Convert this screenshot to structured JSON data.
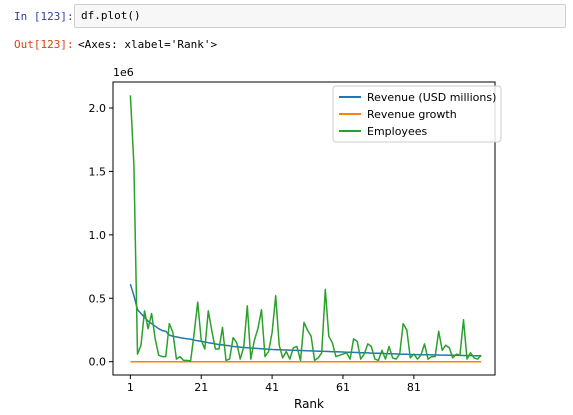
{
  "cell": {
    "in_prompt": "In [123]:",
    "code": "df.plot()",
    "out_prompt": "Out[123]:",
    "output_text": "<Axes: xlabel='Rank'>"
  },
  "chart_data": {
    "type": "line",
    "xlabel": "Rank",
    "ylabel": "",
    "offset_text": "1e6",
    "xlim": [
      -3.9,
      103.9
    ],
    "ylim": [
      -105000,
      2205000
    ],
    "xticks": [
      1,
      21,
      41,
      61,
      81
    ],
    "yticks": [
      0.0,
      500000,
      1000000,
      1500000,
      2000000
    ],
    "ytick_labels": [
      "0.0",
      "0.5",
      "1.0",
      "1.5",
      "2.0"
    ],
    "legend_position": "upper right",
    "grid": false,
    "x": [
      1,
      2,
      3,
      4,
      5,
      6,
      7,
      8,
      9,
      10,
      11,
      12,
      13,
      14,
      15,
      16,
      17,
      18,
      19,
      20,
      21,
      22,
      23,
      24,
      25,
      26,
      27,
      28,
      29,
      30,
      31,
      32,
      33,
      34,
      35,
      36,
      37,
      38,
      39,
      40,
      41,
      42,
      43,
      44,
      45,
      46,
      47,
      48,
      49,
      50,
      51,
      52,
      53,
      54,
      55,
      56,
      57,
      58,
      59,
      60,
      61,
      62,
      63,
      64,
      65,
      66,
      67,
      68,
      69,
      70,
      71,
      72,
      73,
      74,
      75,
      76,
      77,
      78,
      79,
      80,
      81,
      82,
      83,
      84,
      85,
      86,
      87,
      88,
      89,
      90,
      91,
      92,
      93,
      94,
      95,
      96,
      97,
      98,
      99,
      100
    ],
    "series": [
      {
        "name": "Revenue (USD millions)",
        "color": "#1f77b4",
        "values": [
          611000,
          520000,
          410000,
          380000,
          350000,
          320000,
          300000,
          280000,
          260000,
          245000,
          240000,
          210000,
          200000,
          195000,
          190000,
          185000,
          180000,
          178000,
          170000,
          165000,
          160000,
          155000,
          150000,
          145000,
          140000,
          135000,
          132000,
          128000,
          125000,
          120000,
          118000,
          115000,
          112000,
          110000,
          108000,
          106000,
          104000,
          102000,
          100000,
          98000,
          96000,
          95000,
          94000,
          93000,
          92000,
          91000,
          90000,
          89000,
          88000,
          87000,
          86000,
          85000,
          84000,
          83000,
          82000,
          81000,
          80000,
          79000,
          78000,
          77000,
          76000,
          75000,
          74000,
          73000,
          72000,
          71000,
          70000,
          69000,
          68000,
          67000,
          66000,
          65000,
          64000,
          63000,
          62000,
          61000,
          60000,
          59000,
          58000,
          57000,
          56000,
          55500,
          55000,
          54500,
          54000,
          53500,
          53000,
          52500,
          52000,
          51500,
          51000,
          50500,
          50000,
          49500,
          49000,
          48500,
          48000,
          47500,
          47000,
          46500
        ]
      },
      {
        "name": "Revenue growth",
        "color": "#ff7f0e",
        "values": [
          0,
          0,
          0,
          0,
          0,
          0,
          0,
          0,
          0,
          0,
          0,
          0,
          0,
          0,
          0,
          0,
          0,
          0,
          0,
          0,
          0,
          0,
          0,
          0,
          0,
          0,
          0,
          0,
          0,
          0,
          0,
          0,
          0,
          0,
          0,
          0,
          0,
          0,
          0,
          0,
          0,
          0,
          0,
          0,
          0,
          0,
          0,
          0,
          0,
          0,
          0,
          0,
          0,
          0,
          0,
          0,
          0,
          0,
          0,
          0,
          0,
          0,
          0,
          0,
          0,
          0,
          0,
          0,
          0,
          0,
          0,
          0,
          0,
          0,
          0,
          0,
          0,
          0,
          0,
          0,
          0,
          0,
          0,
          0,
          0,
          0,
          0,
          0,
          0,
          0,
          0,
          0,
          0,
          0,
          0,
          0,
          0,
          0,
          0,
          0
        ]
      },
      {
        "name": "Employees",
        "color": "#2ca02c",
        "values": [
          2100000,
          1550000,
          60000,
          130000,
          400000,
          260000,
          380000,
          180000,
          50000,
          40000,
          40000,
          300000,
          230000,
          20000,
          40000,
          10000,
          10000,
          5000,
          220000,
          470000,
          170000,
          100000,
          400000,
          240000,
          100000,
          100000,
          270000,
          10000,
          20000,
          190000,
          150000,
          20000,
          120000,
          440000,
          20000,
          170000,
          260000,
          410000,
          40000,
          80000,
          230000,
          520000,
          130000,
          30000,
          80000,
          20000,
          110000,
          120000,
          10000,
          310000,
          250000,
          200000,
          10000,
          30000,
          70000,
          570000,
          200000,
          150000,
          40000,
          50000,
          60000,
          70000,
          20000,
          180000,
          160000,
          20000,
          60000,
          140000,
          120000,
          20000,
          10000,
          90000,
          20000,
          120000,
          30000,
          20000,
          60000,
          300000,
          250000,
          30000,
          60000,
          20000,
          50000,
          140000,
          20000,
          40000,
          40000,
          240000,
          90000,
          130000,
          110000,
          30000,
          60000,
          50000,
          330000,
          20000,
          70000,
          30000,
          20000,
          50000
        ]
      }
    ]
  }
}
